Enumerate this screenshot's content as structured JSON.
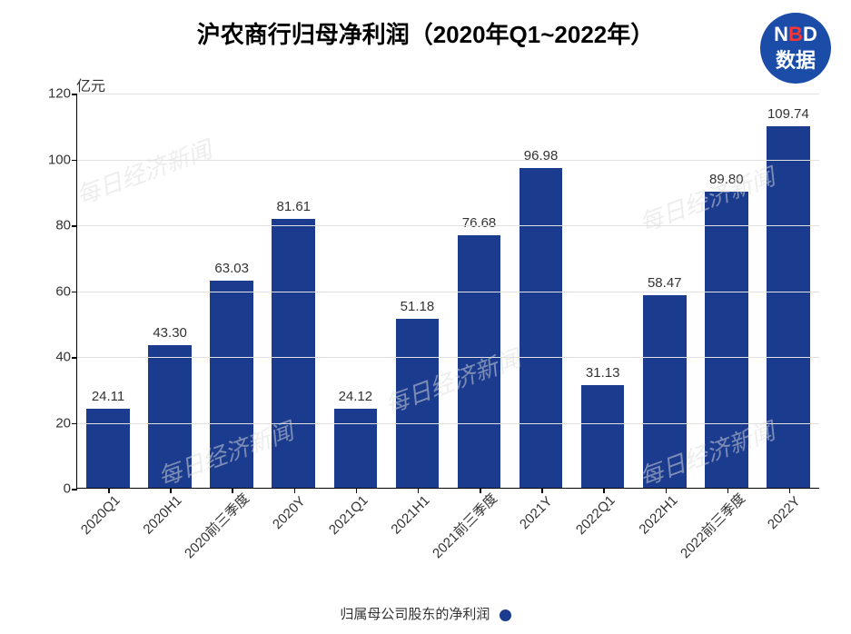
{
  "title": "沪农商行归母净利润（2020年Q1~2022年）",
  "logo": {
    "line1_n": "N",
    "line1_b": "B",
    "line1_d": "D",
    "line2": "数据"
  },
  "chart": {
    "type": "bar",
    "y_unit": "亿元",
    "ylim": [
      0,
      120
    ],
    "ytick_step": 20,
    "y_ticks": [
      0,
      20,
      40,
      60,
      80,
      100,
      120
    ],
    "categories": [
      "2020Q1",
      "2020H1",
      "2020前三季度",
      "2020Y",
      "2021Q1",
      "2021H1",
      "2021前三季度",
      "2021Y",
      "2022Q1",
      "2022H1",
      "2022前三季度",
      "2022Y"
    ],
    "values": [
      24.11,
      43.3,
      63.03,
      81.61,
      24.12,
      51.18,
      76.68,
      96.98,
      31.13,
      58.47,
      89.8,
      109.74
    ],
    "value_labels": [
      "24.11",
      "43.30",
      "63.03",
      "81.61",
      "24.12",
      "51.18",
      "76.68",
      "96.98",
      "31.13",
      "58.47",
      "89.80",
      "109.74"
    ],
    "bar_color": "#1a3b8e",
    "background_color": "#ffffff",
    "grid_color": "#e0e0e0",
    "axis_color": "#000000",
    "tick_fontsize": 15,
    "label_fontsize": 15,
    "title_fontsize": 26,
    "x_label_rotation": -45,
    "bar_width": 0.7
  },
  "legend": {
    "label": "归属母公司股东的净利润",
    "color": "#1a3b8e"
  },
  "watermark_text": "每日经济新闻"
}
